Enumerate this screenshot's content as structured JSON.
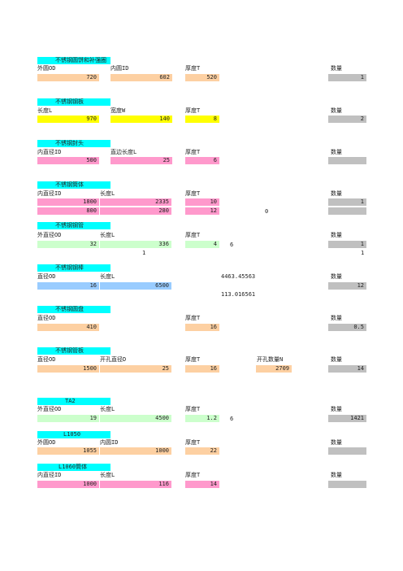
{
  "colors": {
    "title_bg": "#00ffff",
    "peach": "#fdd0a2",
    "yellow": "#ffff00",
    "pink": "#ff99cc",
    "light_green": "#ccffcc",
    "blue": "#99ccff",
    "gray": "#c0c0c0"
  },
  "sec1": {
    "title": "不锈钢圆饼和补强圈",
    "h1": "外圆OD",
    "h2": "内圆ID",
    "h3": "厚度T",
    "h4": "数量",
    "v1": "720",
    "v2": "602",
    "v3": "520",
    "v4": "1"
  },
  "sec2": {
    "title": "不锈钢钢板",
    "h1": "长度L",
    "h2": "宽度W",
    "h3": "厚度T",
    "h4": "数量",
    "v1": "970",
    "v2": "140",
    "v3": "8",
    "v4": "2"
  },
  "sec3": {
    "title": "不锈钢封头",
    "h1": "内直径ID",
    "h2": "直边长度L",
    "h3": "厚度T",
    "h4": "数量",
    "v1": "500",
    "v2": "25",
    "v3": "6"
  },
  "sec4": {
    "title": "不锈钢筒体",
    "h1": "内直径ID",
    "h2": "长度L",
    "h3": "厚度T",
    "h4": "数量",
    "r1v1": "1800",
    "r1v2": "2335",
    "r1v3": "10",
    "r1v4": "1",
    "r2v1": "800",
    "r2v2": "280",
    "r2v3": "12",
    "r2extra": "0"
  },
  "sec5": {
    "title": "不锈钢钢管",
    "h1": "外直径OD",
    "h2": "长度L",
    "h3": "厚度T",
    "h4": "数量",
    "v1": "32",
    "v2": "336",
    "v3": "4",
    "extra": "6",
    "v4": "1",
    "sub1": "1",
    "sub2": "1"
  },
  "sec6": {
    "title": "不锈钢钢棒",
    "h1": "直径OD",
    "h2": "长度L",
    "calc1": "4463.45563",
    "h4": "数量",
    "v1": "16",
    "v2": "6500",
    "v4": "12",
    "calc2": "113.016561"
  },
  "sec7": {
    "title": "不锈钢圆盘",
    "h1": "直径OD",
    "h3": "厚度T",
    "h4": "数量",
    "v1": "410",
    "v3": "16",
    "v4": "0.5"
  },
  "sec8": {
    "title": "不锈钢管板",
    "h1": "直径OD",
    "h2": "开孔直径D",
    "h3": "厚度T",
    "h3b": "开孔数量N",
    "h4": "数量",
    "v1": "1500",
    "v2": "25",
    "v3": "16",
    "v3b": "2709",
    "v4": "14"
  },
  "sec9": {
    "title": "TA2",
    "h1": "外直径OD",
    "h2": "长度L",
    "h3": "厚度T",
    "h4": "数量",
    "v1": "19",
    "v2": "4500",
    "v3": "1.2",
    "extra": "6",
    "v4": "1421"
  },
  "sec10": {
    "title": "L1050",
    "h1": "外圆OD",
    "h2": "内圆ID",
    "h3": "厚度T",
    "h4": "数量",
    "v1": "1055",
    "v2": "1000",
    "v3": "22"
  },
  "sec11": {
    "title": "L1060筒体",
    "h1": "内直径ID",
    "h2": "长度L",
    "h3": "厚度T",
    "h4": "数量",
    "v1": "1000",
    "v2": "116",
    "v3": "14"
  }
}
